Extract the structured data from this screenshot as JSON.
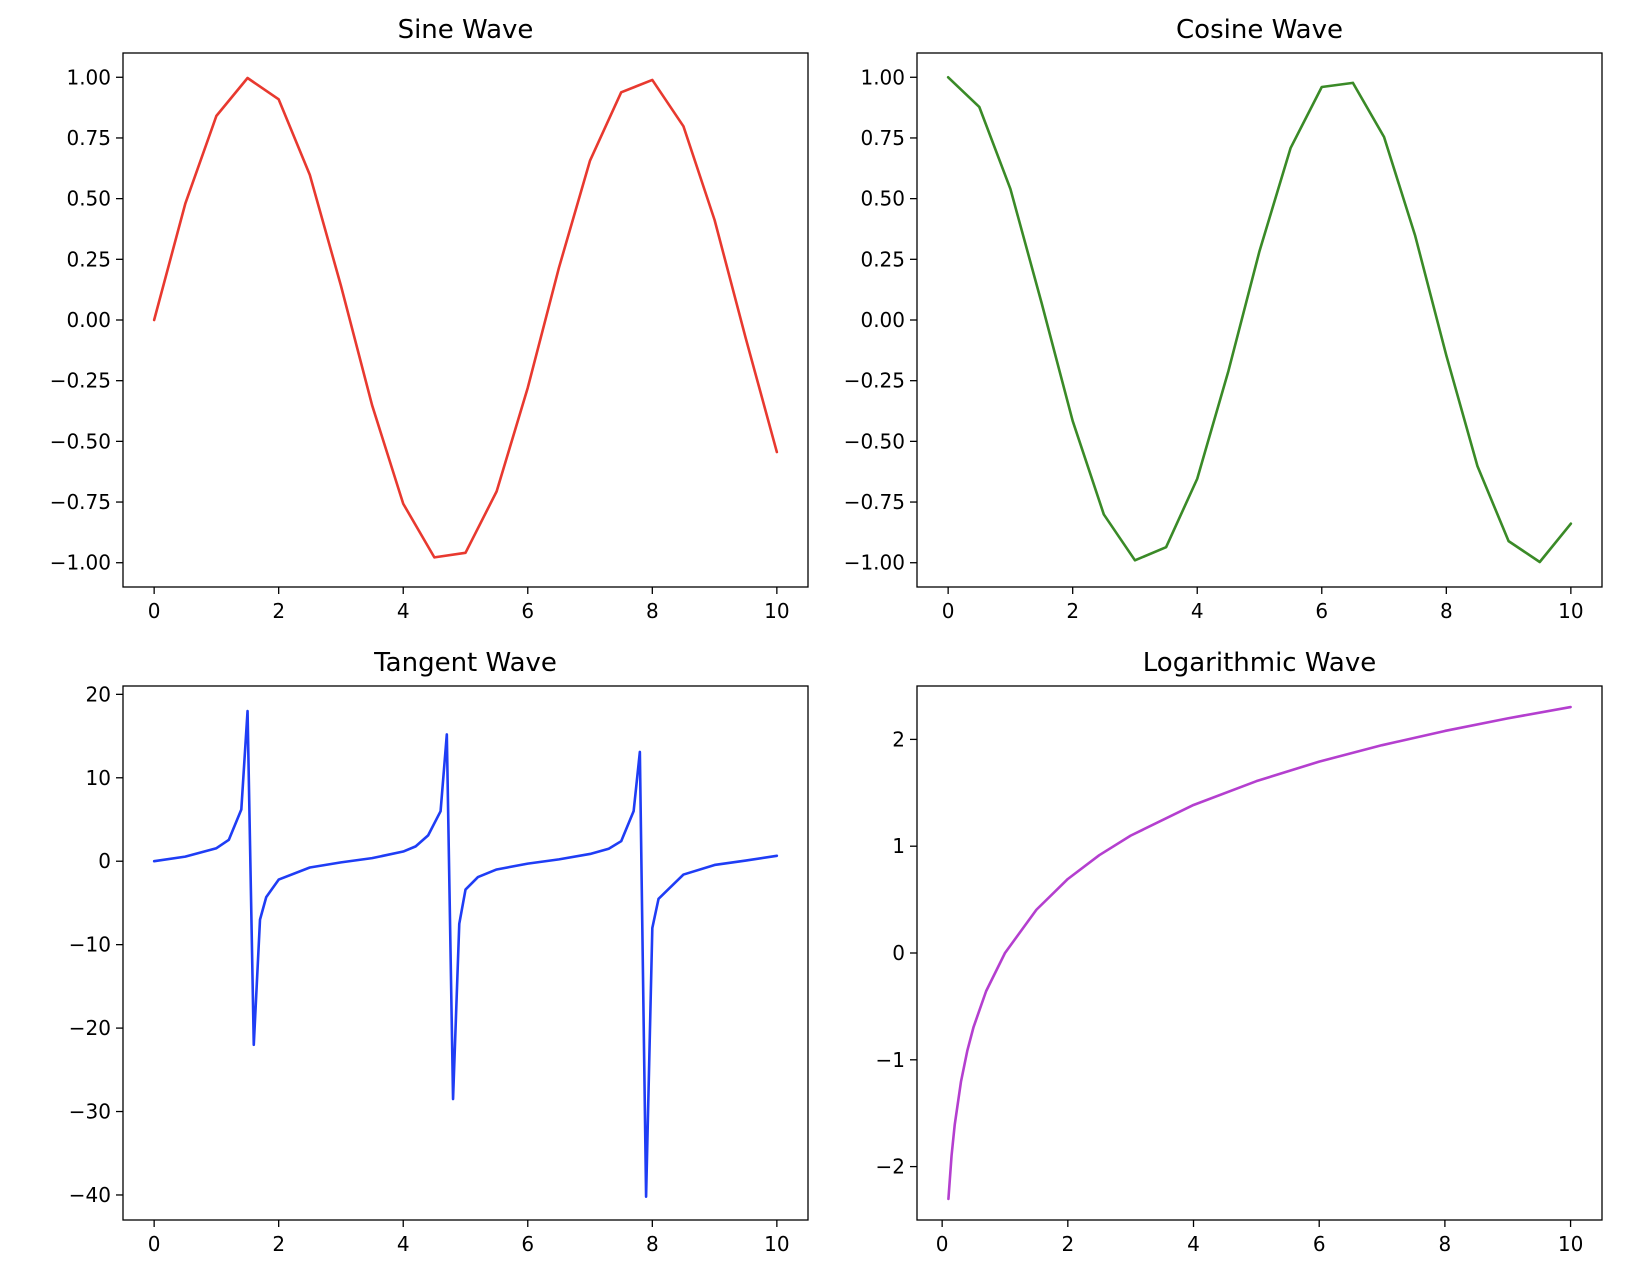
{
  "chart_data": [
    {
      "type": "line",
      "title": "Sine Wave",
      "xlabel": "",
      "ylabel": "",
      "xlim": [
        -0.5,
        10.5
      ],
      "ylim": [
        -1.1,
        1.1
      ],
      "xticks": [
        0,
        2,
        4,
        6,
        8,
        10
      ],
      "xtick_labels": [
        "0",
        "2",
        "4",
        "6",
        "8",
        "10"
      ],
      "yticks": [
        1.0,
        0.75,
        0.5,
        0.25,
        0.0,
        -0.25,
        -0.5,
        -0.75,
        -1.0
      ],
      "ytick_labels": [
        "1.00",
        "0.75",
        "0.50",
        "0.25",
        "0.00",
        "−0.25",
        "−0.50",
        "−0.75",
        "−1.00"
      ],
      "grid": false,
      "series": [
        {
          "color": "#e8392f",
          "x": [
            0,
            0.5,
            1,
            1.5,
            2,
            2.5,
            3,
            3.5,
            4,
            4.5,
            5,
            5.5,
            6,
            6.5,
            7,
            7.5,
            8,
            8.5,
            9,
            9.5,
            10
          ],
          "y": [
            0.0,
            0.479,
            0.841,
            0.997,
            0.909,
            0.598,
            0.141,
            -0.351,
            -0.757,
            -0.978,
            -0.959,
            -0.706,
            -0.279,
            0.215,
            0.657,
            0.938,
            0.989,
            0.798,
            0.412,
            -0.075,
            -0.544
          ]
        }
      ]
    },
    {
      "type": "line",
      "title": "Cosine Wave",
      "xlabel": "",
      "ylabel": "",
      "xlim": [
        -0.5,
        10.5
      ],
      "ylim": [
        -1.1,
        1.1
      ],
      "xticks": [
        0,
        2,
        4,
        6,
        8,
        10
      ],
      "xtick_labels": [
        "0",
        "2",
        "4",
        "6",
        "8",
        "10"
      ],
      "yticks": [
        1.0,
        0.75,
        0.5,
        0.25,
        0.0,
        -0.25,
        -0.5,
        -0.75,
        -1.0
      ],
      "ytick_labels": [
        "1.00",
        "0.75",
        "0.50",
        "0.25",
        "0.00",
        "−0.25",
        "−0.50",
        "−0.75",
        "−1.00"
      ],
      "grid": false,
      "series": [
        {
          "color": "#3a8a27",
          "x": [
            0,
            0.5,
            1,
            1.5,
            2,
            2.5,
            3,
            3.5,
            4,
            4.5,
            5,
            5.5,
            6,
            6.5,
            7,
            7.5,
            8,
            8.5,
            9,
            9.5,
            10
          ],
          "y": [
            1.0,
            0.878,
            0.54,
            0.071,
            -0.416,
            -0.801,
            -0.99,
            -0.936,
            -0.654,
            -0.211,
            0.284,
            0.709,
            0.96,
            0.977,
            0.754,
            0.347,
            -0.146,
            -0.602,
            -0.911,
            -0.997,
            -0.839
          ]
        }
      ]
    },
    {
      "type": "line",
      "title": "Tangent Wave",
      "xlabel": "",
      "ylabel": "",
      "xlim": [
        -0.5,
        10.5
      ],
      "ylim": [
        -43,
        21
      ],
      "xticks": [
        0,
        2,
        4,
        6,
        8,
        10
      ],
      "xtick_labels": [
        "0",
        "2",
        "4",
        "6",
        "8",
        "10"
      ],
      "yticks": [
        20,
        10,
        0,
        -10,
        -20,
        -30,
        -40
      ],
      "ytick_labels": [
        "20",
        "10",
        "0",
        "−10",
        "−20",
        "−30",
        "−40"
      ],
      "grid": false,
      "series": [
        {
          "color": "#1f3df5",
          "x": [
            0,
            0.5,
            1.0,
            1.2,
            1.4,
            1.5,
            1.6,
            1.7,
            1.8,
            2.0,
            2.5,
            3.0,
            3.5,
            4.0,
            4.2,
            4.4,
            4.6,
            4.7,
            4.8,
            4.9,
            5.0,
            5.2,
            5.5,
            6.0,
            6.5,
            7.0,
            7.3,
            7.5,
            7.7,
            7.8,
            7.9,
            8.0,
            8.1,
            8.5,
            9.0,
            9.5,
            10.0
          ],
          "y": [
            0.0,
            0.55,
            1.56,
            2.57,
            6.2,
            18.0,
            -22.0,
            -7.0,
            -4.3,
            -2.2,
            -0.75,
            -0.14,
            0.37,
            1.16,
            1.78,
            3.1,
            6.0,
            15.2,
            -28.5,
            -7.5,
            -3.4,
            -1.9,
            -0.99,
            -0.29,
            0.22,
            0.87,
            1.5,
            2.4,
            6.0,
            13.1,
            -40.2,
            -8.0,
            -4.5,
            -1.6,
            -0.45,
            0.08,
            0.65
          ]
        }
      ]
    },
    {
      "type": "line",
      "title": "Logarithmic Wave",
      "xlabel": "",
      "ylabel": "",
      "xlim": [
        -0.4,
        10.5
      ],
      "ylim": [
        -2.5,
        2.5
      ],
      "xticks": [
        0,
        2,
        4,
        6,
        8,
        10
      ],
      "xtick_labels": [
        "0",
        "2",
        "4",
        "6",
        "8",
        "10"
      ],
      "yticks": [
        2,
        1,
        0,
        -1,
        -2
      ],
      "ytick_labels": [
        "2",
        "1",
        "0",
        "−1",
        "−2"
      ],
      "grid": false,
      "series": [
        {
          "color": "#b43fcf",
          "x": [
            0.1,
            0.15,
            0.2,
            0.3,
            0.4,
            0.5,
            0.7,
            1.0,
            1.5,
            2.0,
            2.5,
            3.0,
            4.0,
            5.0,
            6.0,
            7.0,
            8.0,
            9.0,
            10.0
          ],
          "y": [
            -2.303,
            -1.897,
            -1.609,
            -1.204,
            -0.916,
            -0.693,
            -0.357,
            0.0,
            0.405,
            0.693,
            0.916,
            1.099,
            1.386,
            1.609,
            1.792,
            1.946,
            2.079,
            2.197,
            2.303
          ]
        }
      ]
    }
  ]
}
